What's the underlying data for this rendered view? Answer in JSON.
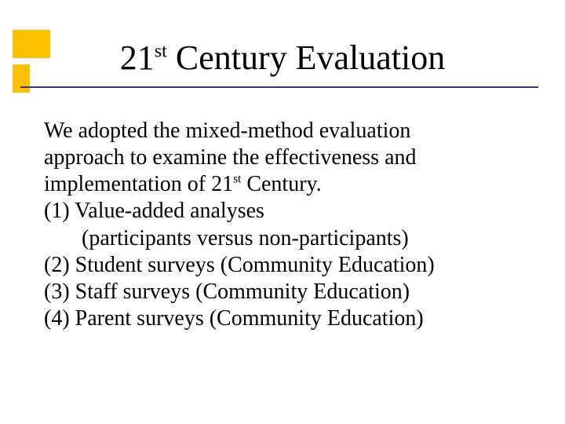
{
  "colors": {
    "background": "#ffffff",
    "accent": "#ffc000",
    "rule": "#333399",
    "text": "#000000"
  },
  "title": {
    "prefix": "21",
    "ordinal": "st",
    "rest": " Century Evaluation",
    "fontsize_pt": 44
  },
  "body": {
    "fontsize_pt": 28,
    "intro_line1": "We adopted the mixed-method evaluation",
    "intro_line2": "approach to examine the effectiveness and",
    "intro_line3_pre": "implementation of 21",
    "intro_line3_sup": "st",
    "intro_line3_post": " Century.",
    "item1": "(1) Value-added analyses",
    "item1_sub": "(participants versus non-participants)",
    "item2": "(2) Student surveys (Community Education)",
    "item3": "(3) Staff surveys (Community Education)",
    "item4": "(4) Parent surveys (Community Education)"
  }
}
